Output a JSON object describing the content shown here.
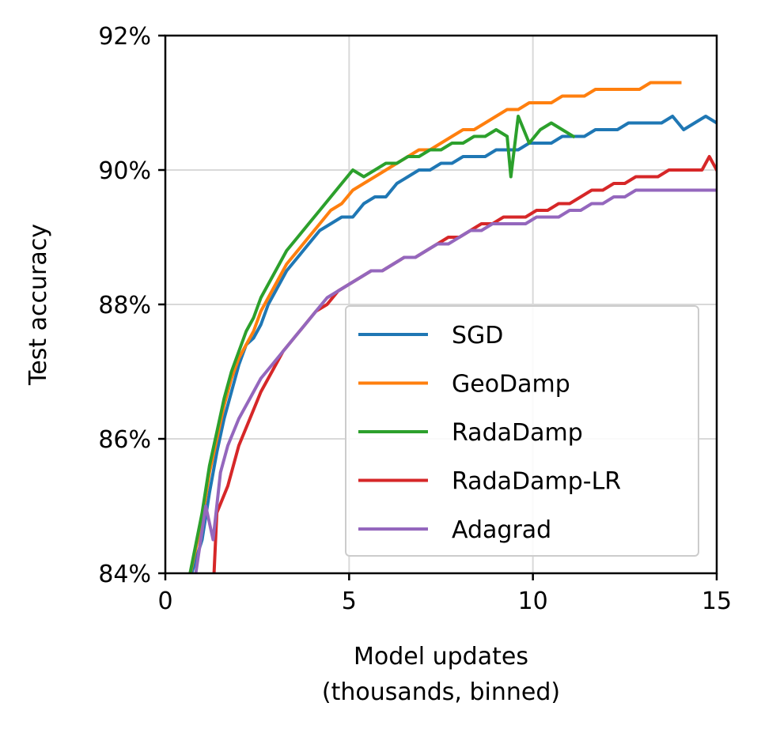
{
  "chart_data": {
    "type": "line",
    "xlabel": "Model updates",
    "xlabel_line2": "(thousands, binned)",
    "ylabel": "Test accuracy",
    "xlim": [
      0,
      15
    ],
    "ylim": [
      84,
      92
    ],
    "xticks": [
      0,
      5,
      10,
      15
    ],
    "xtick_labels": [
      "0",
      "5",
      "10",
      "15"
    ],
    "yticks": [
      84,
      86,
      88,
      90,
      92
    ],
    "ytick_labels": [
      "84%",
      "86%",
      "88%",
      "90%",
      "92%"
    ],
    "grid": true,
    "legend_position": "lower-right",
    "series": [
      {
        "name": "SGD",
        "color": "#1f77b4",
        "x": [
          0.6,
          1.0,
          1.2,
          1.4,
          1.6,
          1.8,
          2.0,
          2.2,
          2.4,
          2.6,
          2.8,
          3.0,
          3.3,
          3.6,
          3.9,
          4.2,
          4.5,
          4.8,
          5.1,
          5.4,
          5.7,
          6.0,
          6.3,
          6.6,
          6.9,
          7.2,
          7.5,
          7.8,
          8.1,
          8.4,
          8.7,
          9.0,
          9.3,
          9.6,
          9.9,
          10.2,
          10.5,
          10.8,
          11.1,
          11.4,
          11.7,
          12.0,
          12.3,
          12.6,
          12.9,
          13.2,
          13.5,
          13.8,
          14.1,
          14.4,
          14.7,
          15.0
        ],
        "values": [
          83.8,
          84.5,
          85.2,
          85.8,
          86.3,
          86.7,
          87.1,
          87.4,
          87.5,
          87.7,
          88.0,
          88.2,
          88.5,
          88.7,
          88.9,
          89.1,
          89.2,
          89.3,
          89.3,
          89.5,
          89.6,
          89.6,
          89.8,
          89.9,
          90.0,
          90.0,
          90.1,
          90.1,
          90.2,
          90.2,
          90.2,
          90.3,
          90.3,
          90.3,
          90.4,
          90.4,
          90.4,
          90.5,
          90.5,
          90.5,
          90.6,
          90.6,
          90.6,
          90.7,
          90.7,
          90.7,
          90.7,
          90.8,
          90.6,
          90.7,
          90.8,
          90.7
        ]
      },
      {
        "name": "GeoDamp",
        "color": "#ff7f0e",
        "x": [
          0.6,
          1.0,
          1.2,
          1.4,
          1.6,
          1.8,
          2.0,
          2.2,
          2.4,
          2.6,
          2.8,
          3.0,
          3.3,
          3.6,
          3.9,
          4.2,
          4.5,
          4.8,
          5.1,
          5.4,
          5.7,
          6.0,
          6.3,
          6.6,
          6.9,
          7.2,
          7.5,
          7.8,
          8.1,
          8.4,
          8.7,
          9.0,
          9.3,
          9.6,
          9.9,
          10.2,
          10.5,
          10.8,
          11.1,
          11.4,
          11.7,
          12.0,
          12.3,
          12.6,
          12.9,
          13.2,
          13.5,
          13.8,
          14.0
        ],
        "values": [
          83.8,
          84.8,
          85.5,
          86.0,
          86.5,
          86.9,
          87.2,
          87.4,
          87.6,
          87.9,
          88.1,
          88.3,
          88.6,
          88.8,
          89.0,
          89.2,
          89.4,
          89.5,
          89.7,
          89.8,
          89.9,
          90.0,
          90.1,
          90.2,
          90.3,
          90.3,
          90.4,
          90.5,
          90.6,
          90.6,
          90.7,
          90.8,
          90.9,
          90.9,
          91.0,
          91.0,
          91.0,
          91.1,
          91.1,
          91.1,
          91.2,
          91.2,
          91.2,
          91.2,
          91.2,
          91.3,
          91.3,
          91.3,
          91.3
        ]
      },
      {
        "name": "RadaDamp",
        "color": "#2ca02c",
        "x": [
          0.6,
          1.0,
          1.2,
          1.4,
          1.6,
          1.8,
          2.0,
          2.2,
          2.4,
          2.6,
          2.8,
          3.0,
          3.3,
          3.6,
          3.9,
          4.2,
          4.5,
          4.8,
          5.1,
          5.4,
          5.7,
          6.0,
          6.3,
          6.6,
          6.9,
          7.2,
          7.5,
          7.8,
          8.1,
          8.4,
          8.7,
          9.0,
          9.3,
          9.4,
          9.6,
          9.9,
          10.2,
          10.5,
          10.8,
          11.1
        ],
        "values": [
          83.8,
          84.9,
          85.6,
          86.1,
          86.6,
          87.0,
          87.3,
          87.6,
          87.8,
          88.1,
          88.3,
          88.5,
          88.8,
          89.0,
          89.2,
          89.4,
          89.6,
          89.8,
          90.0,
          89.9,
          90.0,
          90.1,
          90.1,
          90.2,
          90.2,
          90.3,
          90.3,
          90.4,
          90.4,
          90.5,
          90.5,
          90.6,
          90.5,
          89.9,
          90.8,
          90.4,
          90.6,
          90.7,
          90.6,
          90.5
        ]
      },
      {
        "name": "RadaDamp-LR",
        "color": "#d62728",
        "x": [
          1.3,
          1.4,
          1.7,
          2.0,
          2.3,
          2.6,
          2.9,
          3.2,
          3.5,
          3.8,
          4.1,
          4.4,
          4.7,
          5.0,
          5.3,
          5.6,
          5.9,
          6.2,
          6.5,
          6.8,
          7.1,
          7.4,
          7.7,
          8.0,
          8.3,
          8.6,
          8.9,
          9.2,
          9.5,
          9.8,
          10.1,
          10.4,
          10.7,
          11.0,
          11.3,
          11.6,
          11.9,
          12.2,
          12.5,
          12.8,
          13.1,
          13.4,
          13.7,
          14.0,
          14.3,
          14.6,
          14.8,
          15.0
        ],
        "values": [
          83.7,
          84.9,
          85.3,
          85.9,
          86.3,
          86.7,
          87.0,
          87.3,
          87.5,
          87.7,
          87.9,
          88.0,
          88.2,
          88.3,
          88.4,
          88.5,
          88.5,
          88.6,
          88.7,
          88.7,
          88.8,
          88.9,
          89.0,
          89.0,
          89.1,
          89.2,
          89.2,
          89.3,
          89.3,
          89.3,
          89.4,
          89.4,
          89.5,
          89.5,
          89.6,
          89.7,
          89.7,
          89.8,
          89.8,
          89.9,
          89.9,
          89.9,
          90.0,
          90.0,
          90.0,
          90.0,
          90.2,
          90.0
        ]
      },
      {
        "name": "Adagrad",
        "color": "#9467bd",
        "x": [
          0.8,
          1.1,
          1.3,
          1.5,
          1.7,
          2.0,
          2.3,
          2.6,
          2.9,
          3.2,
          3.5,
          3.8,
          4.1,
          4.4,
          4.7,
          5.0,
          5.3,
          5.6,
          5.9,
          6.2,
          6.5,
          6.8,
          7.1,
          7.4,
          7.7,
          8.0,
          8.3,
          8.6,
          8.9,
          9.2,
          9.5,
          9.8,
          10.1,
          10.4,
          10.7,
          11.0,
          11.3,
          11.6,
          11.9,
          12.2,
          12.5,
          12.8,
          13.1,
          13.4,
          13.7,
          14.0,
          14.3,
          14.6,
          15.0
        ],
        "values": [
          83.9,
          85.0,
          84.5,
          85.5,
          85.9,
          86.3,
          86.6,
          86.9,
          87.1,
          87.3,
          87.5,
          87.7,
          87.9,
          88.1,
          88.2,
          88.3,
          88.4,
          88.5,
          88.5,
          88.6,
          88.7,
          88.7,
          88.8,
          88.9,
          88.9,
          89.0,
          89.1,
          89.1,
          89.2,
          89.2,
          89.2,
          89.2,
          89.3,
          89.3,
          89.3,
          89.4,
          89.4,
          89.5,
          89.5,
          89.6,
          89.6,
          89.7,
          89.7,
          89.7,
          89.7,
          89.7,
          89.7,
          89.7,
          89.7
        ]
      }
    ]
  }
}
